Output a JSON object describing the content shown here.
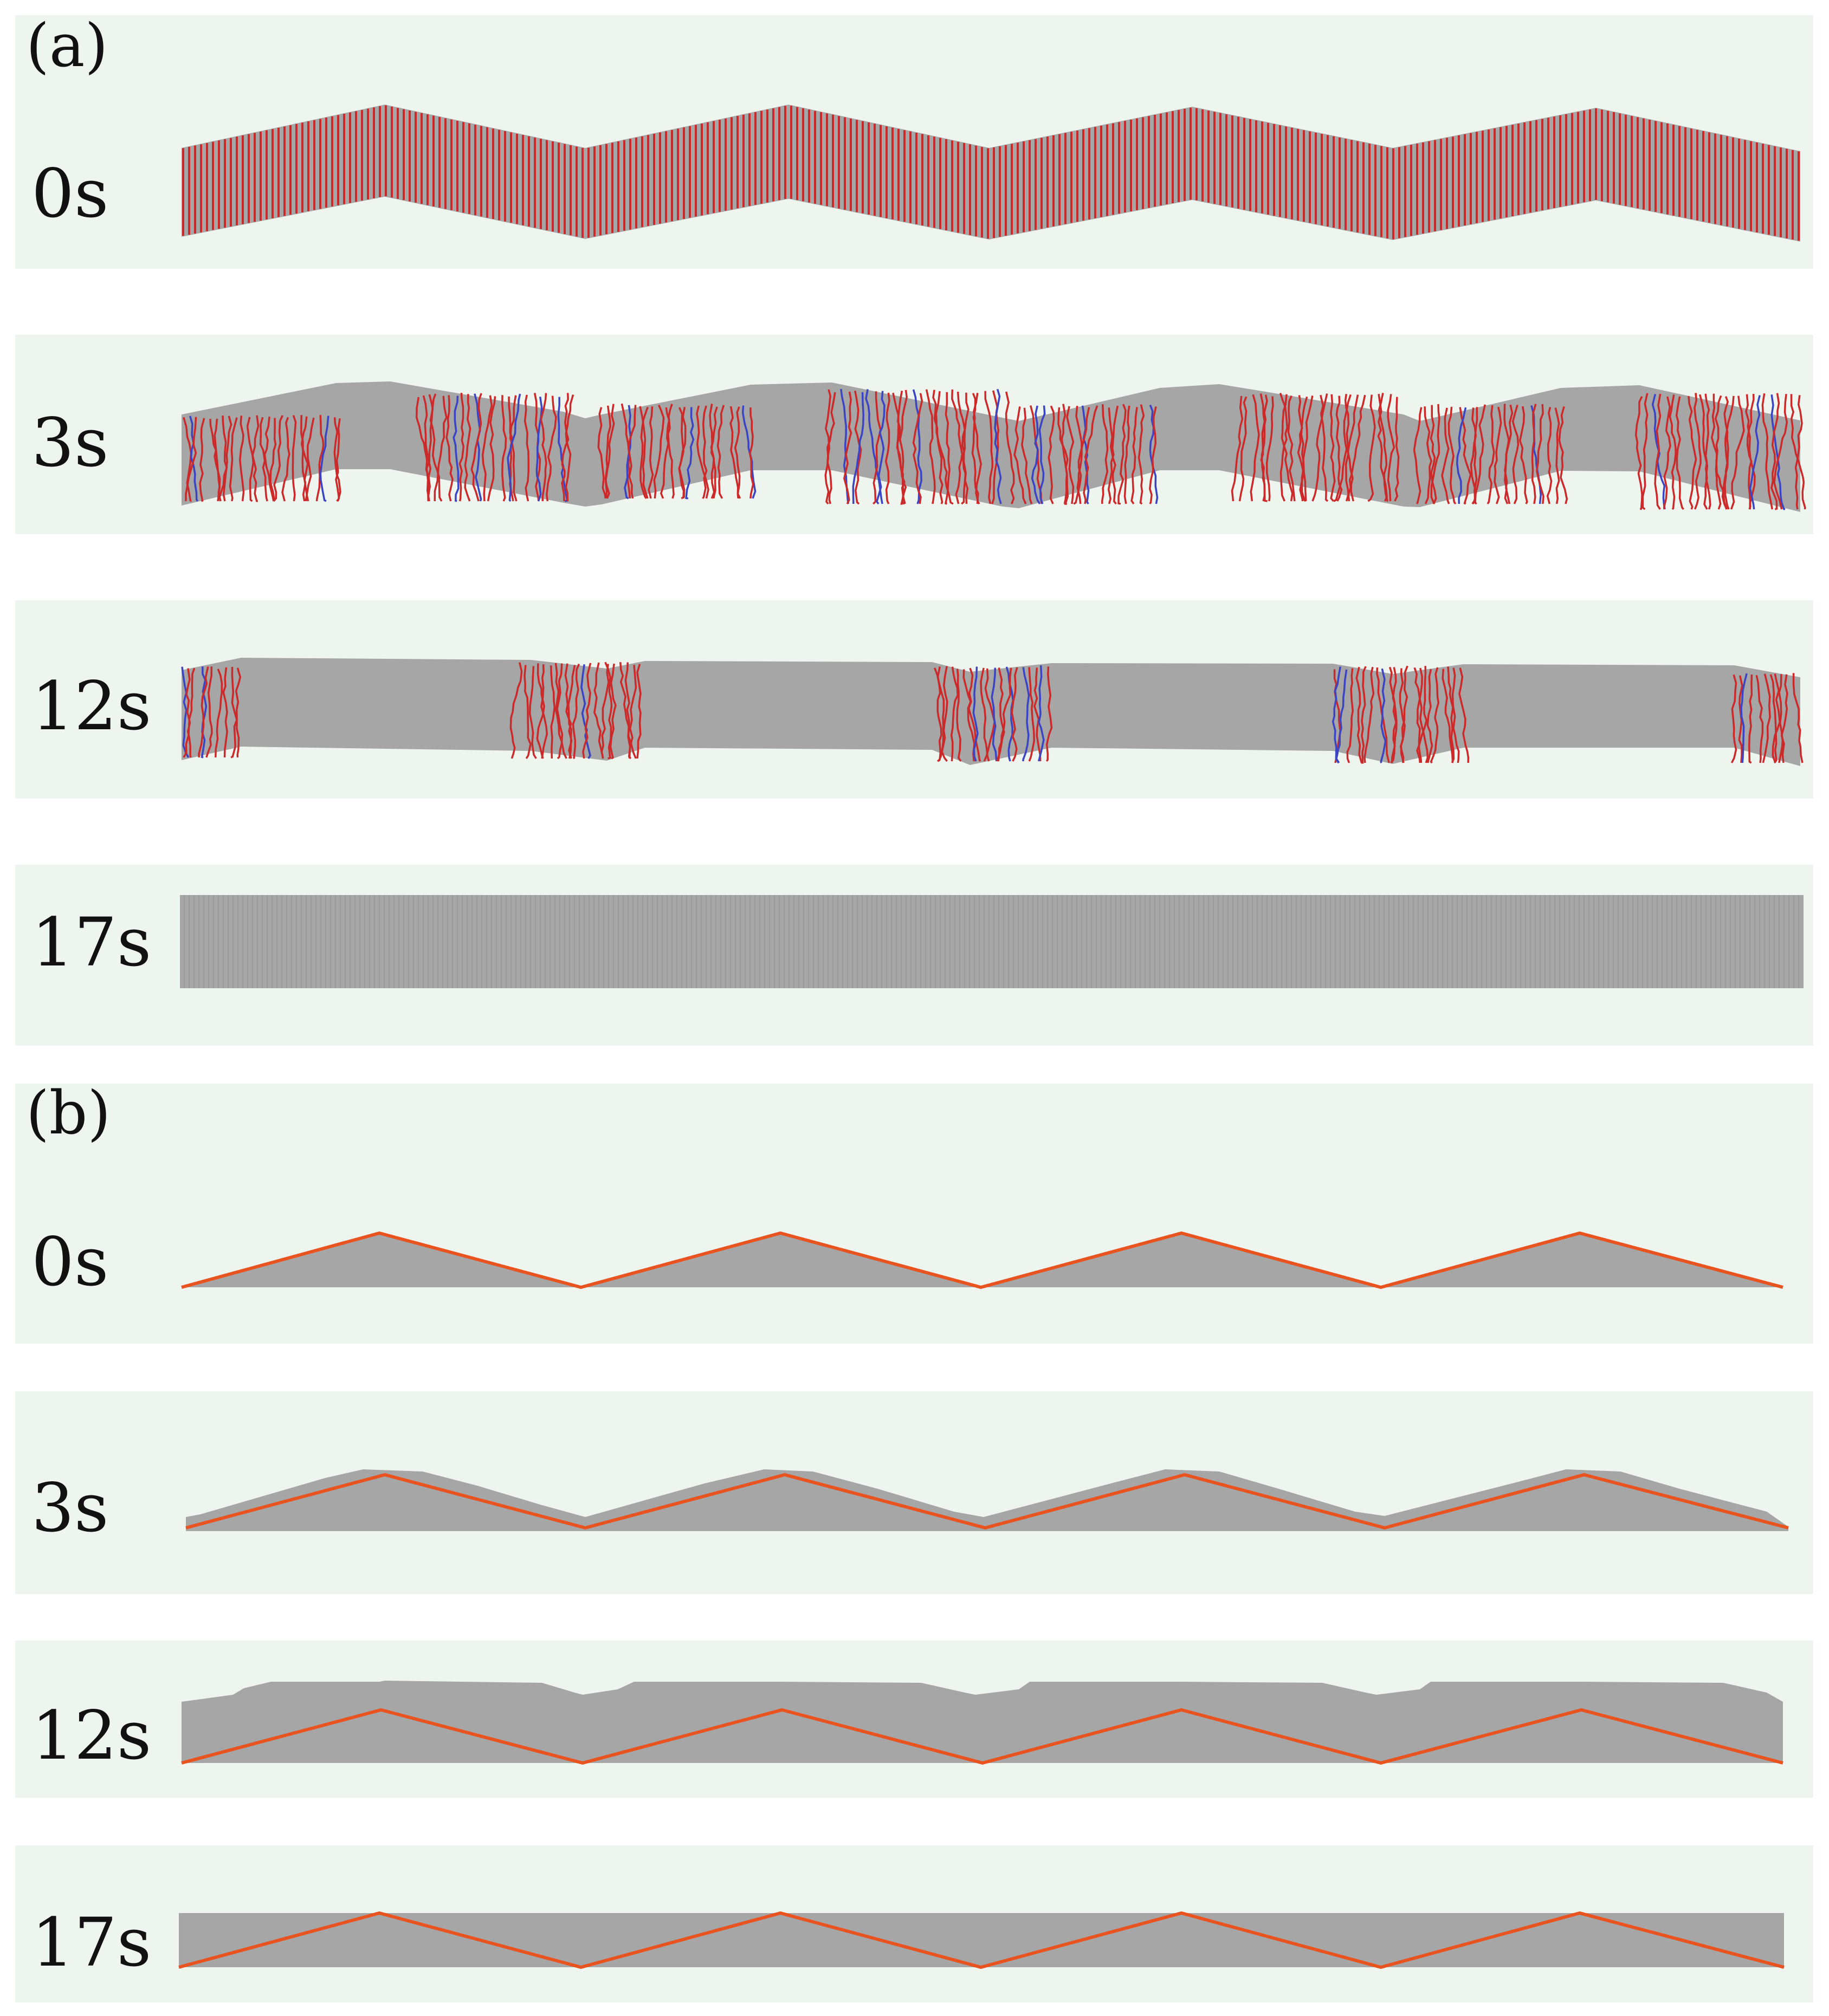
{
  "colors": {
    "panel_bg": "#eef5ee",
    "band_gray": "#a6a6a6",
    "stripe_red": "#cc2a2a",
    "stripe_blue": "#3b45c4",
    "interface_orange": "#e8531f"
  },
  "panel_a": {
    "label": "(a)",
    "rows": [
      {
        "time": "0s"
      },
      {
        "time": "3s"
      },
      {
        "time": "12s"
      },
      {
        "time": "17s"
      }
    ]
  },
  "panel_b": {
    "label": "(b)",
    "rows": [
      {
        "time": "0s"
      },
      {
        "time": "3s"
      },
      {
        "time": "12s"
      },
      {
        "time": "17s"
      }
    ]
  }
}
